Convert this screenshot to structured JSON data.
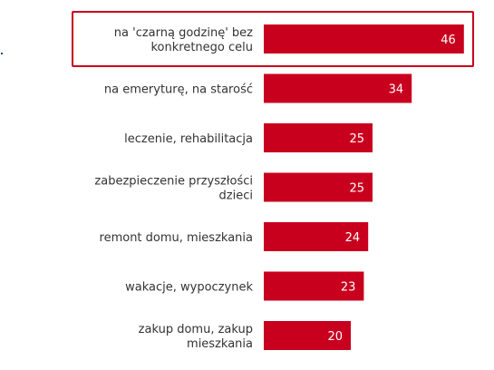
{
  "chart_data": {
    "type": "bar",
    "orientation": "horizontal",
    "categories": [
      [
        "na 'czarną godzinę' bez",
        "konkretnego celu"
      ],
      [
        "na emeryturę, na starość"
      ],
      [
        "leczenie,  rehabilitacja"
      ],
      [
        "zabezpieczenie przyszłości",
        "dzieci"
      ],
      [
        "remont domu, mieszkania"
      ],
      [
        "wakacje, wypoczynek"
      ],
      [
        "zakup domu, zakup",
        "mieszkania"
      ]
    ],
    "values": [
      46,
      34,
      25,
      25,
      24,
      23,
      20
    ],
    "xlim": [
      0,
      50
    ],
    "grid": false,
    "highlighted_index": 0,
    "colors": {
      "bar": "#c8001e",
      "highlight_border": "#c8001e",
      "label": "#333333",
      "value_label": "#ffffff"
    }
  }
}
